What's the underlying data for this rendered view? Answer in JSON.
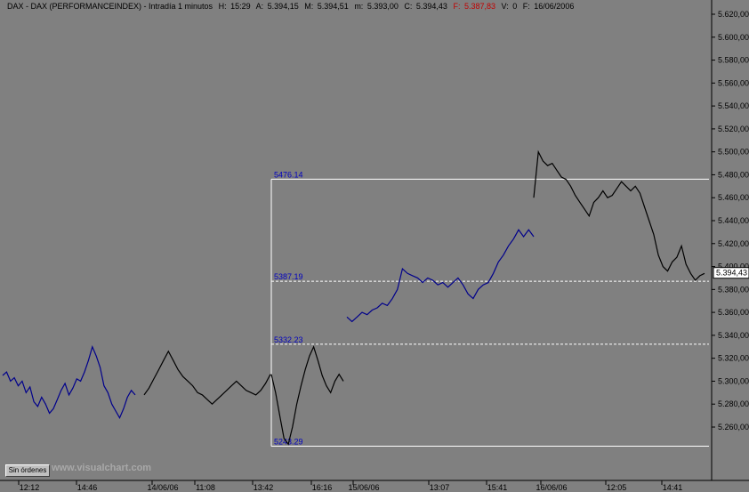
{
  "header": {
    "symbol": "DAX - DAX (PERFORMANCEINDEX) - Intradía 1 minutos",
    "h_label": "H:",
    "h_value": "15:29",
    "a_label": "A:",
    "a_value": "5.394,15",
    "m_label": "M:",
    "m_value": "5.394,51",
    "m2_label": "m:",
    "m2_value": "5.393,00",
    "c_label": "C:",
    "c_value": "5.394,43",
    "f_label": "F:",
    "f_value": "5.387,83",
    "v_label": "V:",
    "v_value": "0",
    "date_label": "F:",
    "date_value": "16/06/2006"
  },
  "toolbar": {
    "orders_button": "Sin órdenes",
    "watermark": "www.visualchart.com"
  },
  "colors": {
    "background": "#808080",
    "up_series": "#000000",
    "blue_series": "#00008b",
    "levels": "#ffffff",
    "fib_labels": "#0000c0"
  },
  "chart_data": {
    "type": "line",
    "title": "DAX - DAX (PERFORMANCEINDEX) - Intradía 1 minutos",
    "ylim": [
      5240,
      5620
    ],
    "y_ticks": [
      {
        "v": 5620,
        "label": "5.620,00"
      },
      {
        "v": 5600,
        "label": "5.600,00"
      },
      {
        "v": 5580,
        "label": "5.580,00"
      },
      {
        "v": 5560,
        "label": "5.560,00"
      },
      {
        "v": 5540,
        "label": "5.540,00"
      },
      {
        "v": 5520,
        "label": "5.520,00"
      },
      {
        "v": 5500,
        "label": "5.500,00"
      },
      {
        "v": 5480,
        "label": "5.480,00"
      },
      {
        "v": 5460,
        "label": "5.460,00"
      },
      {
        "v": 5440,
        "label": "5.440,00"
      },
      {
        "v": 5420,
        "label": "5.420,00"
      },
      {
        "v": 5400,
        "label": "5.400,00"
      },
      {
        "v": 5380,
        "label": "5.380,00"
      },
      {
        "v": 5360,
        "label": "5.360,00"
      },
      {
        "v": 5340,
        "label": "5.340,00"
      },
      {
        "v": 5320,
        "label": "5.320,00"
      },
      {
        "v": 5300,
        "label": "5.300,00"
      },
      {
        "v": 5280,
        "label": "5.280,00"
      },
      {
        "v": 5260,
        "label": "5.260,00"
      }
    ],
    "x_ticks": [
      "12:12",
      "14:46",
      "14/06/06",
      "11:08",
      "13:42",
      "16:16",
      "15/06/06",
      "13:07",
      "15:41",
      "16/06/06",
      "12:05",
      "14:41"
    ],
    "last_value_label": "5.394,43",
    "last_value": 5394.43,
    "fib_levels": [
      {
        "value": 5476.14,
        "label": "5476.14",
        "style": "solid"
      },
      {
        "value": 5387.19,
        "label": "5387.19",
        "style": "dashed"
      },
      {
        "value": 5332.23,
        "label": "5332.23",
        "style": "dashed"
      },
      {
        "value": 5243.29,
        "label": "5243.29",
        "style": "solid"
      }
    ],
    "series": [
      {
        "color": "#00008b",
        "values": [
          5305,
          5308,
          5300,
          5303,
          5296,
          5300,
          5290,
          5295,
          5282,
          5278,
          5286,
          5280,
          5272,
          5276,
          5284,
          5292,
          5298,
          5288,
          5294,
          5302,
          5300,
          5308,
          5318,
          5330,
          5322,
          5312,
          5296,
          5290,
          5280,
          5274,
          5268,
          5276,
          5286,
          5292,
          5288
        ]
      },
      {
        "color": "#000000",
        "values": [
          5288,
          5294,
          5302,
          5310,
          5318,
          5326,
          5318,
          5310,
          5304,
          5300,
          5296,
          5290,
          5288,
          5284,
          5280,
          5284,
          5288,
          5292,
          5296,
          5300,
          5296,
          5292,
          5290,
          5288,
          5292,
          5298,
          5306
        ]
      },
      {
        "color": "#000000",
        "values": [
          5306,
          5290,
          5270,
          5250,
          5245,
          5260,
          5280,
          5296,
          5310,
          5322,
          5330,
          5318,
          5305,
          5296,
          5290,
          5300,
          5306,
          5300
        ]
      },
      {
        "color": "#00008b",
        "values": [
          5356,
          5352,
          5356,
          5360,
          5358,
          5362,
          5364,
          5368,
          5366,
          5372,
          5380,
          5398,
          5394,
          5392,
          5390,
          5386,
          5390,
          5388,
          5384,
          5386,
          5382,
          5386,
          5390,
          5384,
          5376,
          5372,
          5380,
          5384,
          5386,
          5394,
          5404,
          5410,
          5418,
          5424,
          5432,
          5426,
          5432,
          5426
        ]
      },
      {
        "color": "#000000",
        "values": [
          5460,
          5500,
          5492,
          5488,
          5490,
          5484,
          5478,
          5476,
          5470,
          5462,
          5456,
          5450,
          5444,
          5456,
          5460,
          5466,
          5460,
          5462,
          5468,
          5474,
          5470,
          5466,
          5470,
          5464,
          5452,
          5440,
          5428,
          5410,
          5400,
          5396,
          5404,
          5408,
          5418,
          5402,
          5394,
          5388,
          5392,
          5394
        ]
      }
    ]
  }
}
